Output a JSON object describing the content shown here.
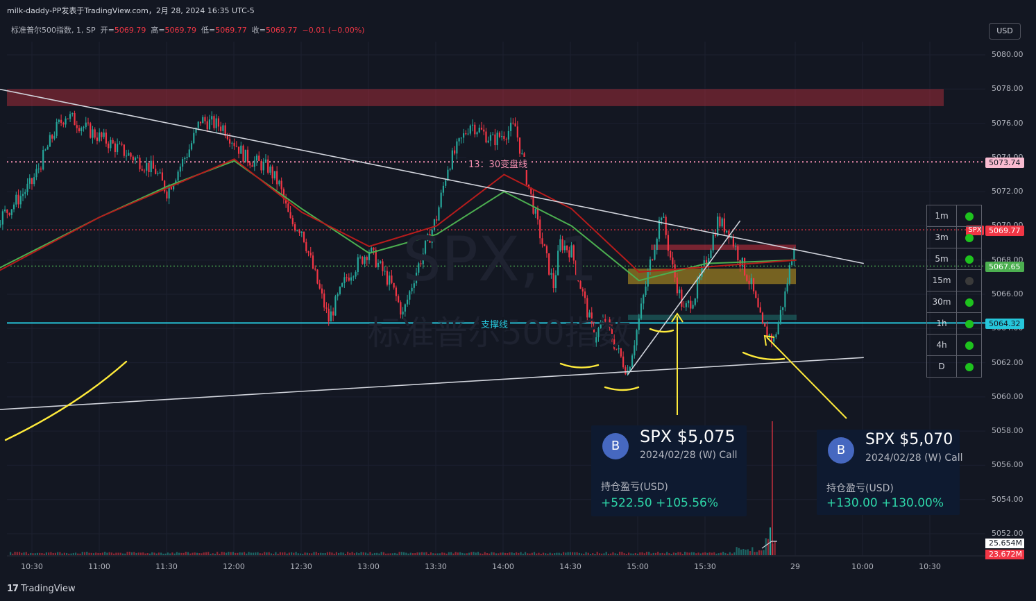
{
  "header": {
    "title": "milk-daddy-PP发表于TradingView.com，2月 28, 2024 16:35 UTC-5",
    "symbol": "标准普尔500指数, 1, SP",
    "open_label": "开=",
    "open": "5069.79",
    "high_label": "高=",
    "high": "5069.79",
    "low_label": "低=",
    "low": "5069.77",
    "close_label": "收=",
    "close": "5069.77",
    "change": "−0.01 (−0.00%)"
  },
  "currency_button": "USD",
  "watermark": {
    "symbol": "SPX, 1",
    "name": "标准普尔500指数"
  },
  "lines": {
    "pivot_label": "13：30变盘线",
    "support_label": "支撑线"
  },
  "price_tags": {
    "pivot": "5073.74",
    "last": "5069.77",
    "last_symbol": "SPX",
    "upper_green": "5067.65",
    "support": "5064.32",
    "volume_a": "25.654M",
    "volume_b": "23.672M"
  },
  "colors": {
    "background": "#131722",
    "up": "#26a69a",
    "down": "#f23645",
    "ma_fast": "#4caf50",
    "ma_slow": "#b71c1c",
    "support": "#26c6da",
    "pivot": "#f48fb1",
    "annotation": "#ffeb3b"
  },
  "timeframes": [
    {
      "label": "1m",
      "status": "green"
    },
    {
      "label": "3m",
      "status": "green"
    },
    {
      "label": "5m",
      "status": "green"
    },
    {
      "label": "15m",
      "status": "gray"
    },
    {
      "label": "30m",
      "status": "green"
    },
    {
      "label": "1h",
      "status": "green"
    },
    {
      "label": "4h",
      "status": "green"
    },
    {
      "label": "D",
      "status": "green"
    }
  ],
  "cards": [
    {
      "badge": "B",
      "title": "SPX $5,075",
      "subtitle": "2024/02/28 (W) Call",
      "pnl_label": "持仓盈亏(USD)",
      "pnl": "+522.50 +105.56%"
    },
    {
      "badge": "B",
      "title": "SPX $5,070",
      "subtitle": "2024/02/28 (W) Call",
      "pnl_label": "持仓盈亏(USD)",
      "pnl": "+130.00 +130.00%"
    }
  ],
  "footer": {
    "brand": "TradingView"
  },
  "chart_data": {
    "type": "candlestick",
    "yaxis_ticks": [
      "5080.00",
      "5078.00",
      "5076.00",
      "5074.00",
      "5072.00",
      "5070.00",
      "5068.00",
      "5066.00",
      "5064.00",
      "5062.00",
      "5060.00",
      "5058.00",
      "5056.00",
      "5054.00",
      "5052.00"
    ],
    "ylim": [
      5051.5,
      5080.5
    ],
    "xaxis_ticks": [
      "10:30",
      "11:00",
      "11:30",
      "12:00",
      "12:30",
      "13:00",
      "13:30",
      "14:00",
      "14:30",
      "15:00",
      "15:30",
      "29",
      "10:00",
      "10:30"
    ],
    "close_path": [
      [
        "09:30",
        5066.8
      ],
      [
        "09:40",
        5065.5
      ],
      [
        "09:45",
        5063.2
      ],
      [
        "09:50",
        5065.8
      ],
      [
        "10:00",
        5068.5
      ],
      [
        "10:10",
        5069.8
      ],
      [
        "10:20",
        5071.0
      ],
      [
        "10:30",
        5072.5
      ],
      [
        "10:40",
        5075.5
      ],
      [
        "10:45",
        5076.5
      ],
      [
        "10:55",
        5075.6
      ],
      [
        "11:05",
        5074.8
      ],
      [
        "11:15",
        5074.0
      ],
      [
        "11:25",
        5073.2
      ],
      [
        "11:30",
        5072.0
      ],
      [
        "11:40",
        5074.5
      ],
      [
        "11:45",
        5076.2
      ],
      [
        "11:55",
        5075.8
      ],
      [
        "12:05",
        5074.0
      ],
      [
        "12:15",
        5073.4
      ],
      [
        "12:20",
        5072.4
      ],
      [
        "12:25",
        5070.2
      ],
      [
        "12:30",
        5069.8
      ],
      [
        "12:35",
        5067.5
      ],
      [
        "12:42",
        5064.5
      ],
      [
        "12:50",
        5067.0
      ],
      [
        "13:00",
        5068.6
      ],
      [
        "13:10",
        5066.5
      ],
      [
        "13:15",
        5064.8
      ],
      [
        "13:20",
        5067.0
      ],
      [
        "13:30",
        5070.5
      ],
      [
        "13:35",
        5073.5
      ],
      [
        "13:45",
        5076.0
      ],
      [
        "13:55",
        5075.0
      ],
      [
        "14:05",
        5075.8
      ],
      [
        "14:10",
        5072.8
      ],
      [
        "14:15",
        5070.0
      ],
      [
        "14:22",
        5066.5
      ],
      [
        "14:25",
        5069.0
      ],
      [
        "14:30",
        5068.5
      ],
      [
        "14:36",
        5065.5
      ],
      [
        "14:40",
        5063.5
      ],
      [
        "14:45",
        5064.5
      ],
      [
        "14:50",
        5062.8
      ],
      [
        "14:55",
        5061.5
      ],
      [
        "15:00",
        5064.5
      ],
      [
        "15:05",
        5067.8
      ],
      [
        "15:10",
        5070.8
      ],
      [
        "15:15",
        5067.5
      ],
      [
        "15:20",
        5065.0
      ],
      [
        "15:25",
        5066.0
      ],
      [
        "15:30",
        5068.0
      ],
      [
        "15:35",
        5070.3
      ],
      [
        "15:40",
        5069.7
      ],
      [
        "15:45",
        5068.0
      ],
      [
        "15:50",
        5066.5
      ],
      [
        "15:55",
        5064.0
      ],
      [
        "16:00",
        5063.3
      ],
      [
        "16:05",
        5066.0
      ],
      [
        "16:10",
        5069.8
      ]
    ],
    "moving_averages": [
      {
        "name": "",
        "color": "#4caf50",
        "path": [
          [
            "10:00",
            5066.5
          ],
          [
            "11:00",
            5070.5
          ],
          [
            "11:30",
            5072.3
          ],
          [
            "12:00",
            5073.8
          ],
          [
            "12:30",
            5071.0
          ],
          [
            "13:00",
            5068.4
          ],
          [
            "13:30",
            5069.5
          ],
          [
            "14:00",
            5072.0
          ],
          [
            "14:30",
            5070.0
          ],
          [
            "15:00",
            5066.8
          ],
          [
            "15:30",
            5067.8
          ],
          [
            "16:10",
            5068.0
          ]
        ]
      },
      {
        "name": "",
        "color": "#b71c1c",
        "path": [
          [
            "09:30",
            5066.8
          ],
          [
            "10:00",
            5066.3
          ],
          [
            "11:00",
            5070.5
          ],
          [
            "12:00",
            5073.9
          ],
          [
            "12:30",
            5070.8
          ],
          [
            "13:00",
            5068.8
          ],
          [
            "13:30",
            5070.0
          ],
          [
            "14:00",
            5073.0
          ],
          [
            "14:30",
            5071.0
          ],
          [
            "15:00",
            5067.3
          ],
          [
            "15:30",
            5067.6
          ],
          [
            "16:10",
            5068.0
          ]
        ]
      }
    ],
    "horizontal_lines": [
      {
        "price": 5073.74,
        "style": "dotted",
        "color": "#f48fb1",
        "label": "13：30变盘线"
      },
      {
        "price": 5069.77,
        "style": "dotted",
        "color": "#f23645"
      },
      {
        "price": 5067.65,
        "style": "dotted",
        "color": "#4caf50"
      },
      {
        "price": 5064.32,
        "style": "solid",
        "color": "#26c6da",
        "label": "支撑线"
      }
    ],
    "zones": [
      {
        "from_price": 5077.0,
        "to_price": 5078.0,
        "color": "#f23645"
      },
      {
        "from_price": 5066.6,
        "to_price": 5067.5,
        "color": "#c8a020"
      },
      {
        "from_price": 5068.6,
        "to_price": 5068.9,
        "color": "#f23645"
      },
      {
        "from_price": 5064.5,
        "to_price": 5064.8,
        "color": "#26a69a"
      }
    ],
    "trendlines": [
      {
        "from": [
          "09:30",
          5079.2
        ],
        "to": [
          "16:40",
          5067.8
        ],
        "color": "#d1d4dc"
      },
      {
        "from": [
          "09:30",
          5058.9
        ],
        "to": [
          "16:40",
          5062.3
        ],
        "color": "#d1d4dc"
      },
      {
        "from": [
          "14:55",
          5061.3
        ],
        "to": [
          "15:45",
          5070.3
        ],
        "color": "#d1d4dc"
      }
    ],
    "volume": {
      "last": "25.654M",
      "prev": "23.672M"
    },
    "grid": true
  }
}
